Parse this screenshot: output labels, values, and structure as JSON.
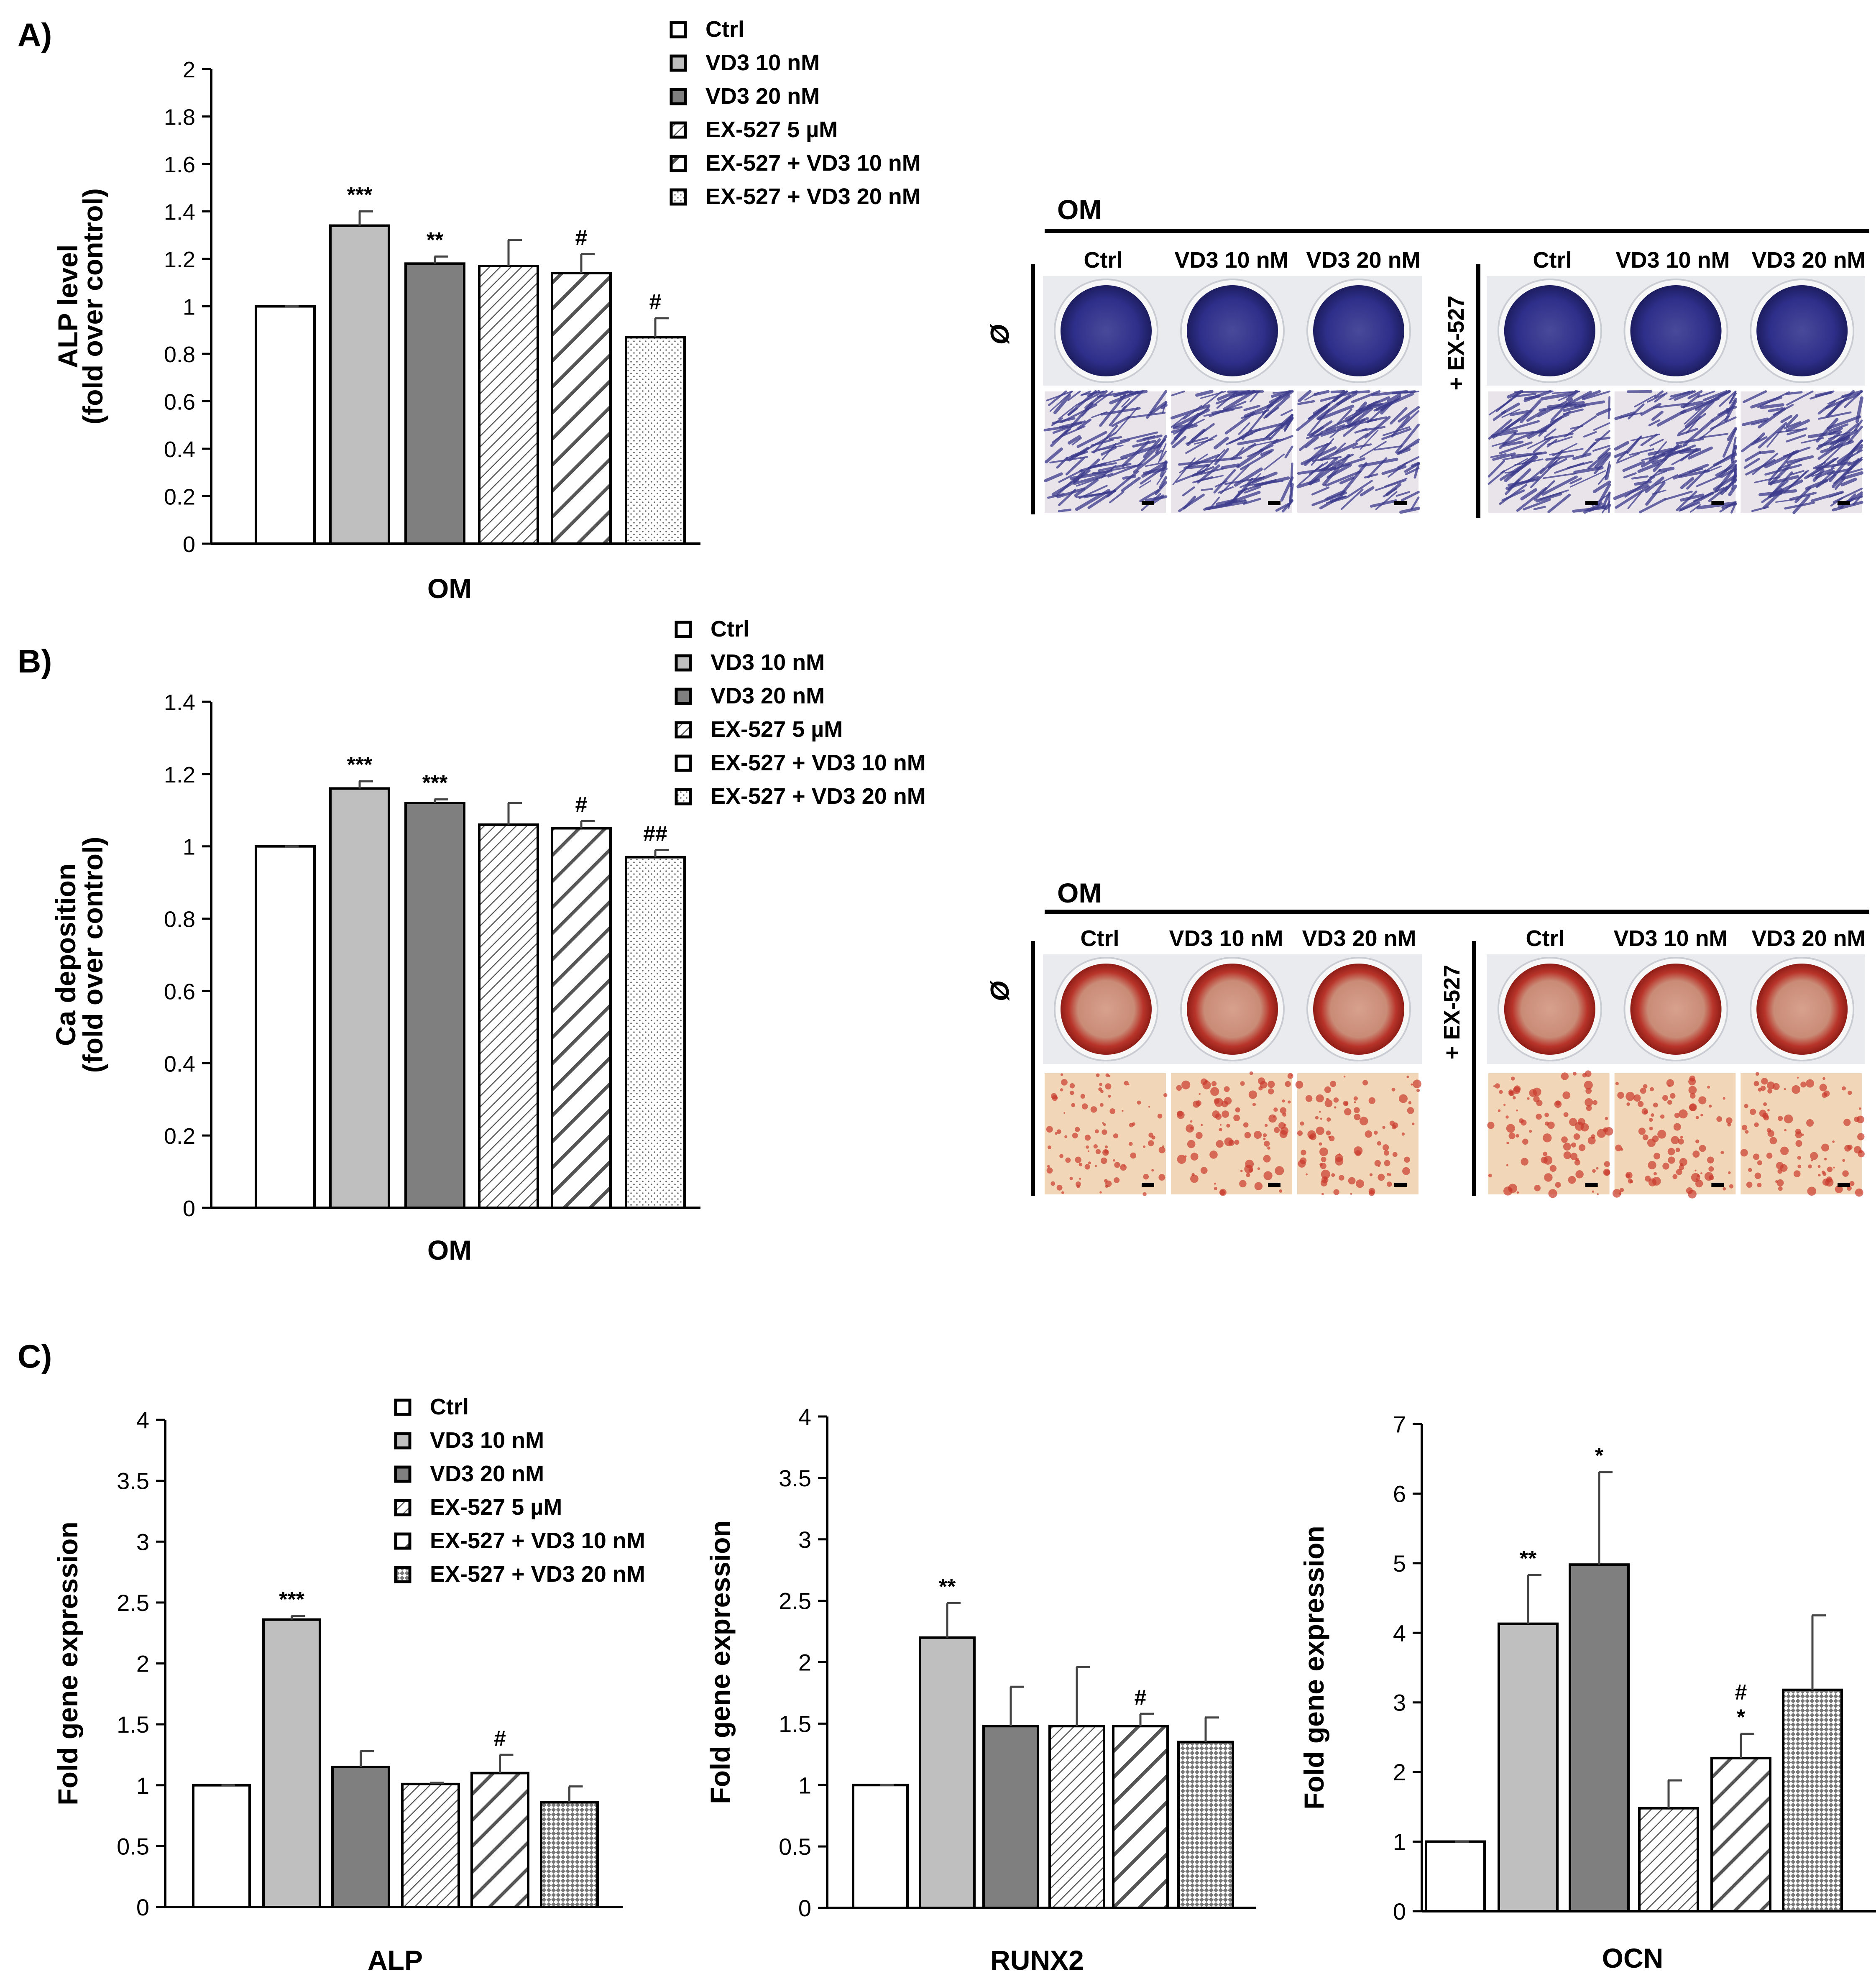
{
  "legend_labels": [
    "Ctrl",
    "VD3 10 nM",
    "VD3 20 nM",
    "EX-527 5 µM",
    "EX-527 + VD3 10 nM",
    "EX-527 + VD3 20 nM"
  ],
  "colors": {
    "ctrl": "#ffffff",
    "vd3_10": "#bfbfbf",
    "vd3_20": "#7f7f7f",
    "axis": "#000000",
    "alp_stain": "#2e2f8a",
    "ars_stain": "#c8382c"
  },
  "panel_a": {
    "letter": "A)",
    "micrograph": {
      "header": "OM",
      "columns": [
        "Ctrl",
        "VD3 10 nM",
        "VD3 20 nM",
        "Ctrl",
        "VD3 10 nM",
        "VD3 20 nM"
      ],
      "row_left": "Ø",
      "row_right": "+ EX-527"
    }
  },
  "panel_b": {
    "letter": "B)",
    "micrograph": {
      "header": "OM",
      "columns": [
        "Ctrl",
        "VD3 10 nM",
        "VD3 20 nM",
        "Ctrl",
        "VD3 10 nM",
        "VD3 20 nM"
      ],
      "row_left": "Ø",
      "row_right": "+ EX-527"
    }
  },
  "panel_c": {
    "letter": "C)"
  },
  "chart_data": [
    {
      "id": "A",
      "type": "bar",
      "ylabel": "ALP level",
      "ylabel2": "(fold over control)",
      "xlabel": "OM",
      "ylim": [
        0,
        2
      ],
      "ticks": [
        "0",
        "0.2",
        "0.4",
        "0.6",
        "0.8",
        "1",
        "1.2",
        "1.4",
        "1.6",
        "1.8",
        "2"
      ],
      "categories": [
        "Ctrl",
        "VD3 10 nM",
        "VD3 20 nM",
        "EX-527 5 µM",
        "EX-527 + VD3 10 nM",
        "EX-527 + VD3 20 nM"
      ],
      "values": [
        1.0,
        1.34,
        1.18,
        1.17,
        1.14,
        0.87
      ],
      "errors": [
        0,
        0.06,
        0.03,
        0.11,
        0.08,
        0.08
      ],
      "annotations": [
        "",
        "***",
        "**",
        "",
        "#",
        "#"
      ]
    },
    {
      "id": "B",
      "type": "bar",
      "ylabel": "Ca deposition",
      "ylabel2": "(fold over control)",
      "xlabel": "OM",
      "ylim": [
        0,
        1.4
      ],
      "ticks": [
        "0",
        "0.2",
        "0.4",
        "0.6",
        "0.8",
        "1",
        "1.2",
        "1.4"
      ],
      "categories": [
        "Ctrl",
        "VD3 10 nM",
        "VD3 20 nM",
        "EX-527 5 µM",
        "EX-527 + VD3 10 nM",
        "EX-527 + VD3 20 nM"
      ],
      "values": [
        1.0,
        1.16,
        1.12,
        1.06,
        1.05,
        0.97
      ],
      "errors": [
        0,
        0.02,
        0.01,
        0.06,
        0.02,
        0.02
      ],
      "annotations": [
        "",
        "***",
        "***",
        "",
        "#",
        "##"
      ]
    },
    {
      "id": "C1",
      "type": "bar",
      "ylabel": "Fold gene expression",
      "xlabel": "ALP",
      "ylim": [
        0,
        4
      ],
      "ticks": [
        "0",
        "0.5",
        "1",
        "1.5",
        "2",
        "2.5",
        "3",
        "3.5",
        "4"
      ],
      "categories": [
        "Ctrl",
        "VD3 10 nM",
        "VD3 20 nM",
        "EX-527 5 µM",
        "EX-527 + VD3 10 nM",
        "EX-527 + VD3 20 nM"
      ],
      "values": [
        1.0,
        2.36,
        1.15,
        1.01,
        1.1,
        0.86
      ],
      "errors": [
        0,
        0.03,
        0.13,
        0.01,
        0.15,
        0.13
      ],
      "annotations": [
        "",
        "***",
        "",
        "",
        "#",
        ""
      ]
    },
    {
      "id": "C2",
      "type": "bar",
      "ylabel": "Fold gene expression",
      "xlabel": "RUNX2",
      "ylim": [
        0,
        4
      ],
      "ticks": [
        "0",
        "0.5",
        "1",
        "1.5",
        "2",
        "2.5",
        "3",
        "3.5",
        "4"
      ],
      "categories": [
        "Ctrl",
        "VD3 10 nM",
        "VD3 20 nM",
        "EX-527 5 µM",
        "EX-527 + VD3 10 nM",
        "EX-527 + VD3 20 nM"
      ],
      "values": [
        1.0,
        2.2,
        1.48,
        1.48,
        1.48,
        1.35
      ],
      "errors": [
        0,
        0.28,
        0.32,
        0.48,
        0.1,
        0.2
      ],
      "annotations": [
        "",
        "**",
        "",
        "",
        "#",
        ""
      ]
    },
    {
      "id": "C3",
      "type": "bar",
      "ylabel": "Fold gene expression",
      "xlabel": "OCN",
      "ylim": [
        0,
        7
      ],
      "ticks": [
        "0",
        "1",
        "2",
        "3",
        "4",
        "5",
        "6",
        "7"
      ],
      "categories": [
        "Ctrl",
        "VD3 10 nM",
        "VD3 20 nM",
        "EX-527 5 µM",
        "EX-527 + VD3 10 nM",
        "EX-527 + VD3 20 nM"
      ],
      "values": [
        1.0,
        4.13,
        4.98,
        1.48,
        2.2,
        3.18
      ],
      "errors": [
        0,
        0.7,
        1.33,
        0.4,
        0.35,
        1.07
      ],
      "annotations": [
        "",
        "**",
        "*",
        "",
        "#|*",
        ""
      ]
    }
  ]
}
